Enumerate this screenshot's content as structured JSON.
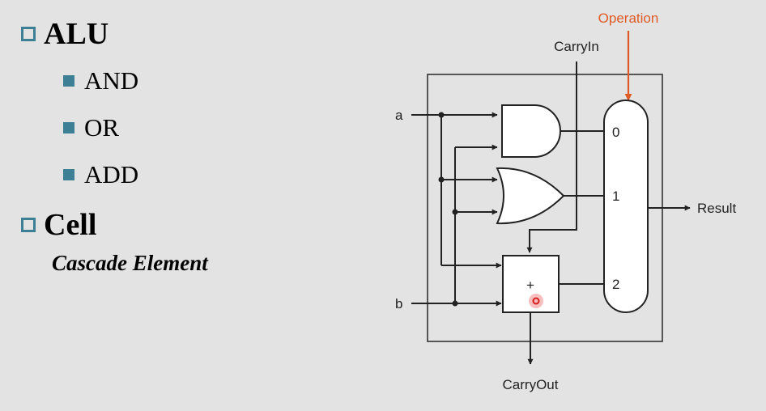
{
  "slide": {
    "bullets": [
      {
        "label": "ALU",
        "children": [
          "AND",
          "OR",
          "ADD"
        ]
      },
      {
        "label": "Cell",
        "subtitle": "Cascade Element"
      }
    ]
  },
  "diagram": {
    "inputs": {
      "a": "a",
      "b": "b"
    },
    "carry_in": "CarryIn",
    "carry_out": "CarryOut",
    "operation": "Operation",
    "result": "Result",
    "mux_inputs": [
      "0",
      "1",
      "2"
    ],
    "adder_symbol": "+",
    "colors": {
      "operation": "#e05a25",
      "bullet": "#3d7f95",
      "background": "#e3e3e3"
    }
  }
}
